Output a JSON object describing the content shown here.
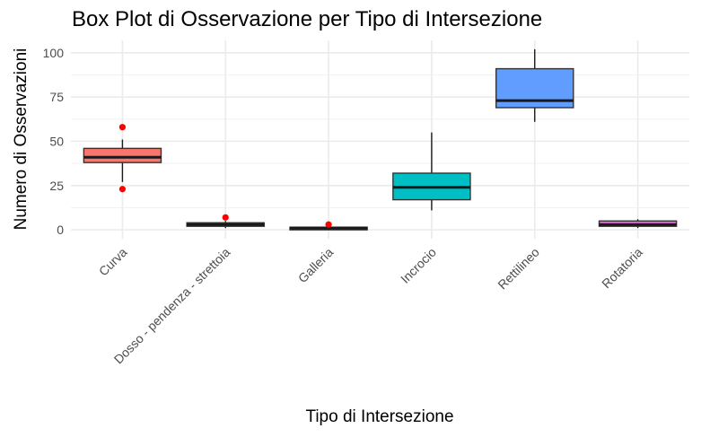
{
  "chart_data": {
    "type": "box",
    "title": "Box Plot di Osservazione per Tipo di Intersezione",
    "xlabel": "Tipo di Intersezione",
    "ylabel": "Numero di Osservazioni",
    "ylim": [
      -5,
      107
    ],
    "yticks": [
      0,
      25,
      50,
      75,
      100
    ],
    "grid": true,
    "legend": "none",
    "outlier_color": "#ff0000",
    "categories": [
      "Curva",
      "Dosso - pendenza - strettoia",
      "Galleria",
      "Incrocio",
      "Rettilineo",
      "Rotatoria"
    ],
    "boxes": [
      {
        "category": "Curva",
        "color": "#f8766d",
        "min": 27,
        "q1": 38,
        "median": 41,
        "q3": 46,
        "max": 51,
        "outliers": [
          58,
          23
        ]
      },
      {
        "category": "Dosso - pendenza - strettoia",
        "color": "#b79f00",
        "min": 1,
        "q1": 2,
        "median": 3,
        "q3": 4,
        "max": 5,
        "outliers": [
          7
        ]
      },
      {
        "category": "Galleria",
        "color": "#00ba38",
        "min": 0,
        "q1": 0,
        "median": 1,
        "q3": 1.5,
        "max": 2,
        "outliers": [
          3
        ]
      },
      {
        "category": "Incrocio",
        "color": "#00bfc4",
        "min": 11,
        "q1": 17,
        "median": 24,
        "q3": 32,
        "max": 55,
        "outliers": []
      },
      {
        "category": "Rettilineo",
        "color": "#619cff",
        "min": 61,
        "q1": 69,
        "median": 73,
        "q3": 91,
        "max": 102,
        "outliers": []
      },
      {
        "category": "Rotatoria",
        "color": "#f564e3",
        "min": 1,
        "q1": 2,
        "median": 3,
        "q3": 5,
        "max": 6,
        "outliers": []
      }
    ]
  }
}
